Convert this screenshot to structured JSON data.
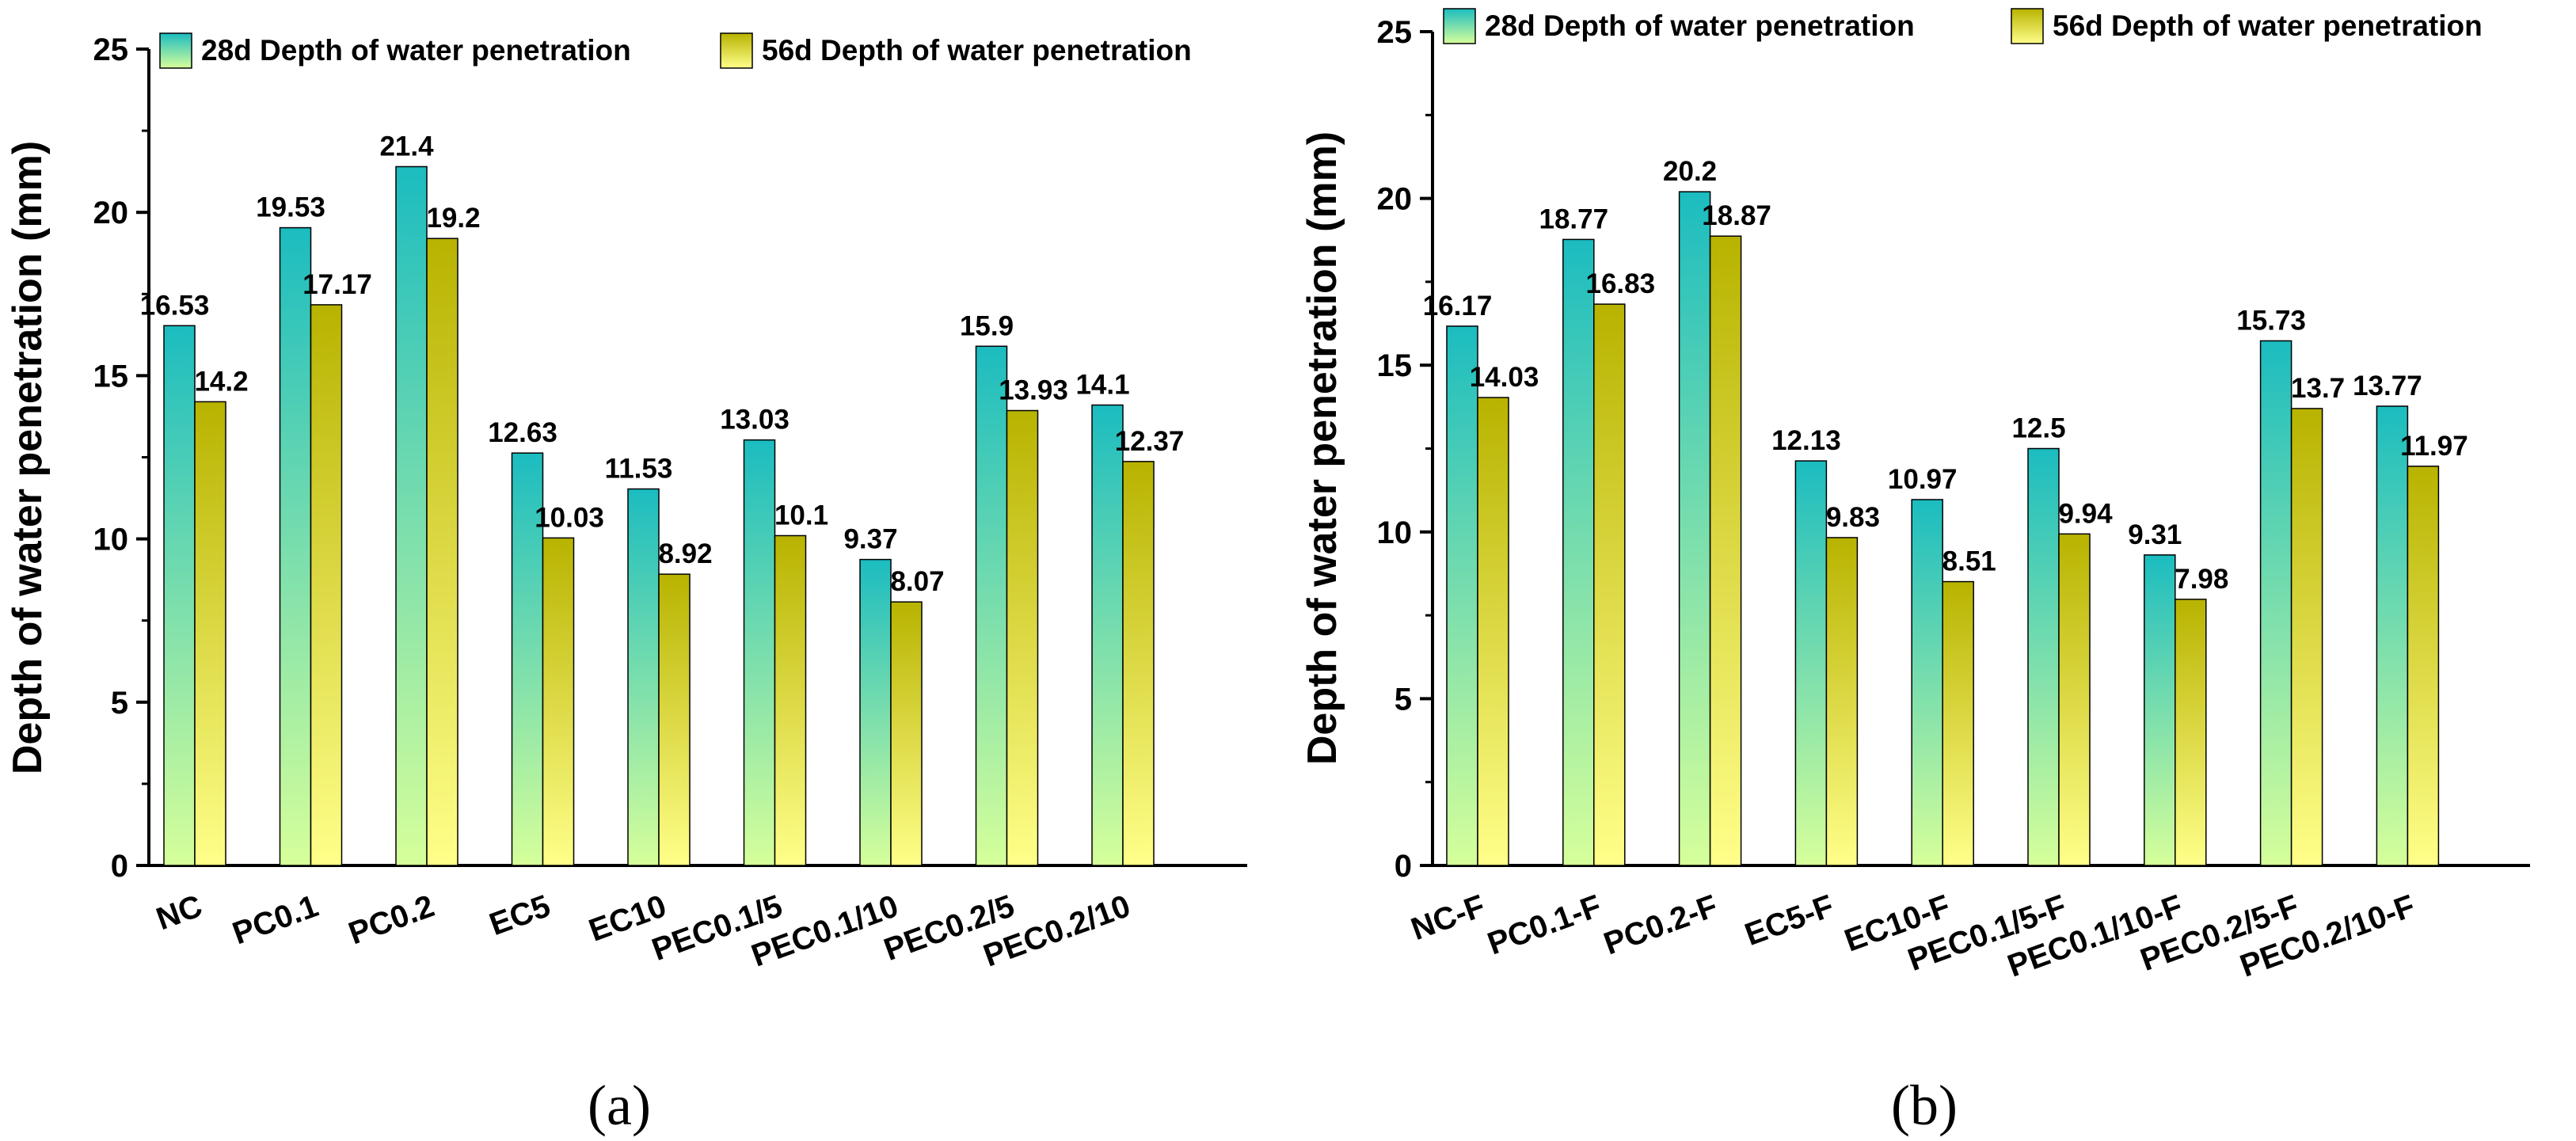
{
  "colors": {
    "series_28d_top": "#1bbcc0",
    "series_28d_bottom": "#d6ff9a",
    "series_56d_top": "#b8b300",
    "series_56d_bottom": "#ffff8a",
    "axis": "#000000"
  },
  "chart_data": [
    {
      "type": "bar",
      "panel_label": "(a)",
      "ylabel": "Depth of water penetration (mm)",
      "xlabel": "",
      "ylim": [
        0,
        25
      ],
      "yticks": [
        "0",
        "5",
        "10",
        "15",
        "20",
        "25"
      ],
      "legend_position": "top",
      "categories": [
        "NC",
        "PC0.1",
        "PC0.2",
        "EC5",
        "EC10",
        "PEC0.1/5",
        "PEC0.1/10",
        "PEC0.2/5",
        "PEC0.2/10"
      ],
      "series": [
        {
          "name": "28d Depth of water penetration",
          "values": [
            16.53,
            19.53,
            21.4,
            12.63,
            11.53,
            13.03,
            9.37,
            15.9,
            14.1
          ],
          "labels": [
            "16.53",
            "19.53",
            "21.4",
            "12.63",
            "11.53",
            "13.03",
            "9.37",
            "15.9",
            "14.1"
          ]
        },
        {
          "name": "56d Depth of water penetration",
          "values": [
            14.2,
            17.17,
            19.2,
            10.03,
            8.92,
            10.1,
            8.07,
            13.93,
            12.37
          ],
          "labels": [
            "14.2",
            "17.17",
            "19.2",
            "10.03",
            "8.92",
            "10.1",
            "8.07",
            "13.93",
            "12.37"
          ]
        }
      ]
    },
    {
      "type": "bar",
      "panel_label": "(b)",
      "ylabel": "Depth of water penetration (mm)",
      "xlabel": "",
      "ylim": [
        0,
        25
      ],
      "yticks": [
        "0",
        "5",
        "10",
        "15",
        "20",
        "25"
      ],
      "legend_position": "top",
      "categories": [
        "NC-F",
        "PC0.1-F",
        "PC0.2-F",
        "EC5-F",
        "EC10-F",
        "PEC0.1/5-F",
        "PEC0.1/10-F",
        "PEC0.2/5-F",
        "PEC0.2/10-F"
      ],
      "series": [
        {
          "name": "28d Depth of water penetration",
          "values": [
            16.17,
            18.77,
            20.2,
            12.13,
            10.97,
            12.5,
            9.31,
            15.73,
            13.77
          ],
          "labels": [
            "16.17",
            "18.77",
            "20.2",
            "12.13",
            "10.97",
            "12.5",
            "9.31",
            "15.73",
            "13.77"
          ]
        },
        {
          "name": "56d Depth of water penetration",
          "values": [
            14.03,
            16.83,
            18.87,
            9.83,
            8.51,
            9.94,
            7.98,
            13.7,
            11.97
          ],
          "labels": [
            "14.03",
            "16.83",
            "18.87",
            "9.83",
            "8.51",
            "9.94",
            "7.98",
            "13.7",
            "11.97"
          ]
        }
      ]
    }
  ]
}
